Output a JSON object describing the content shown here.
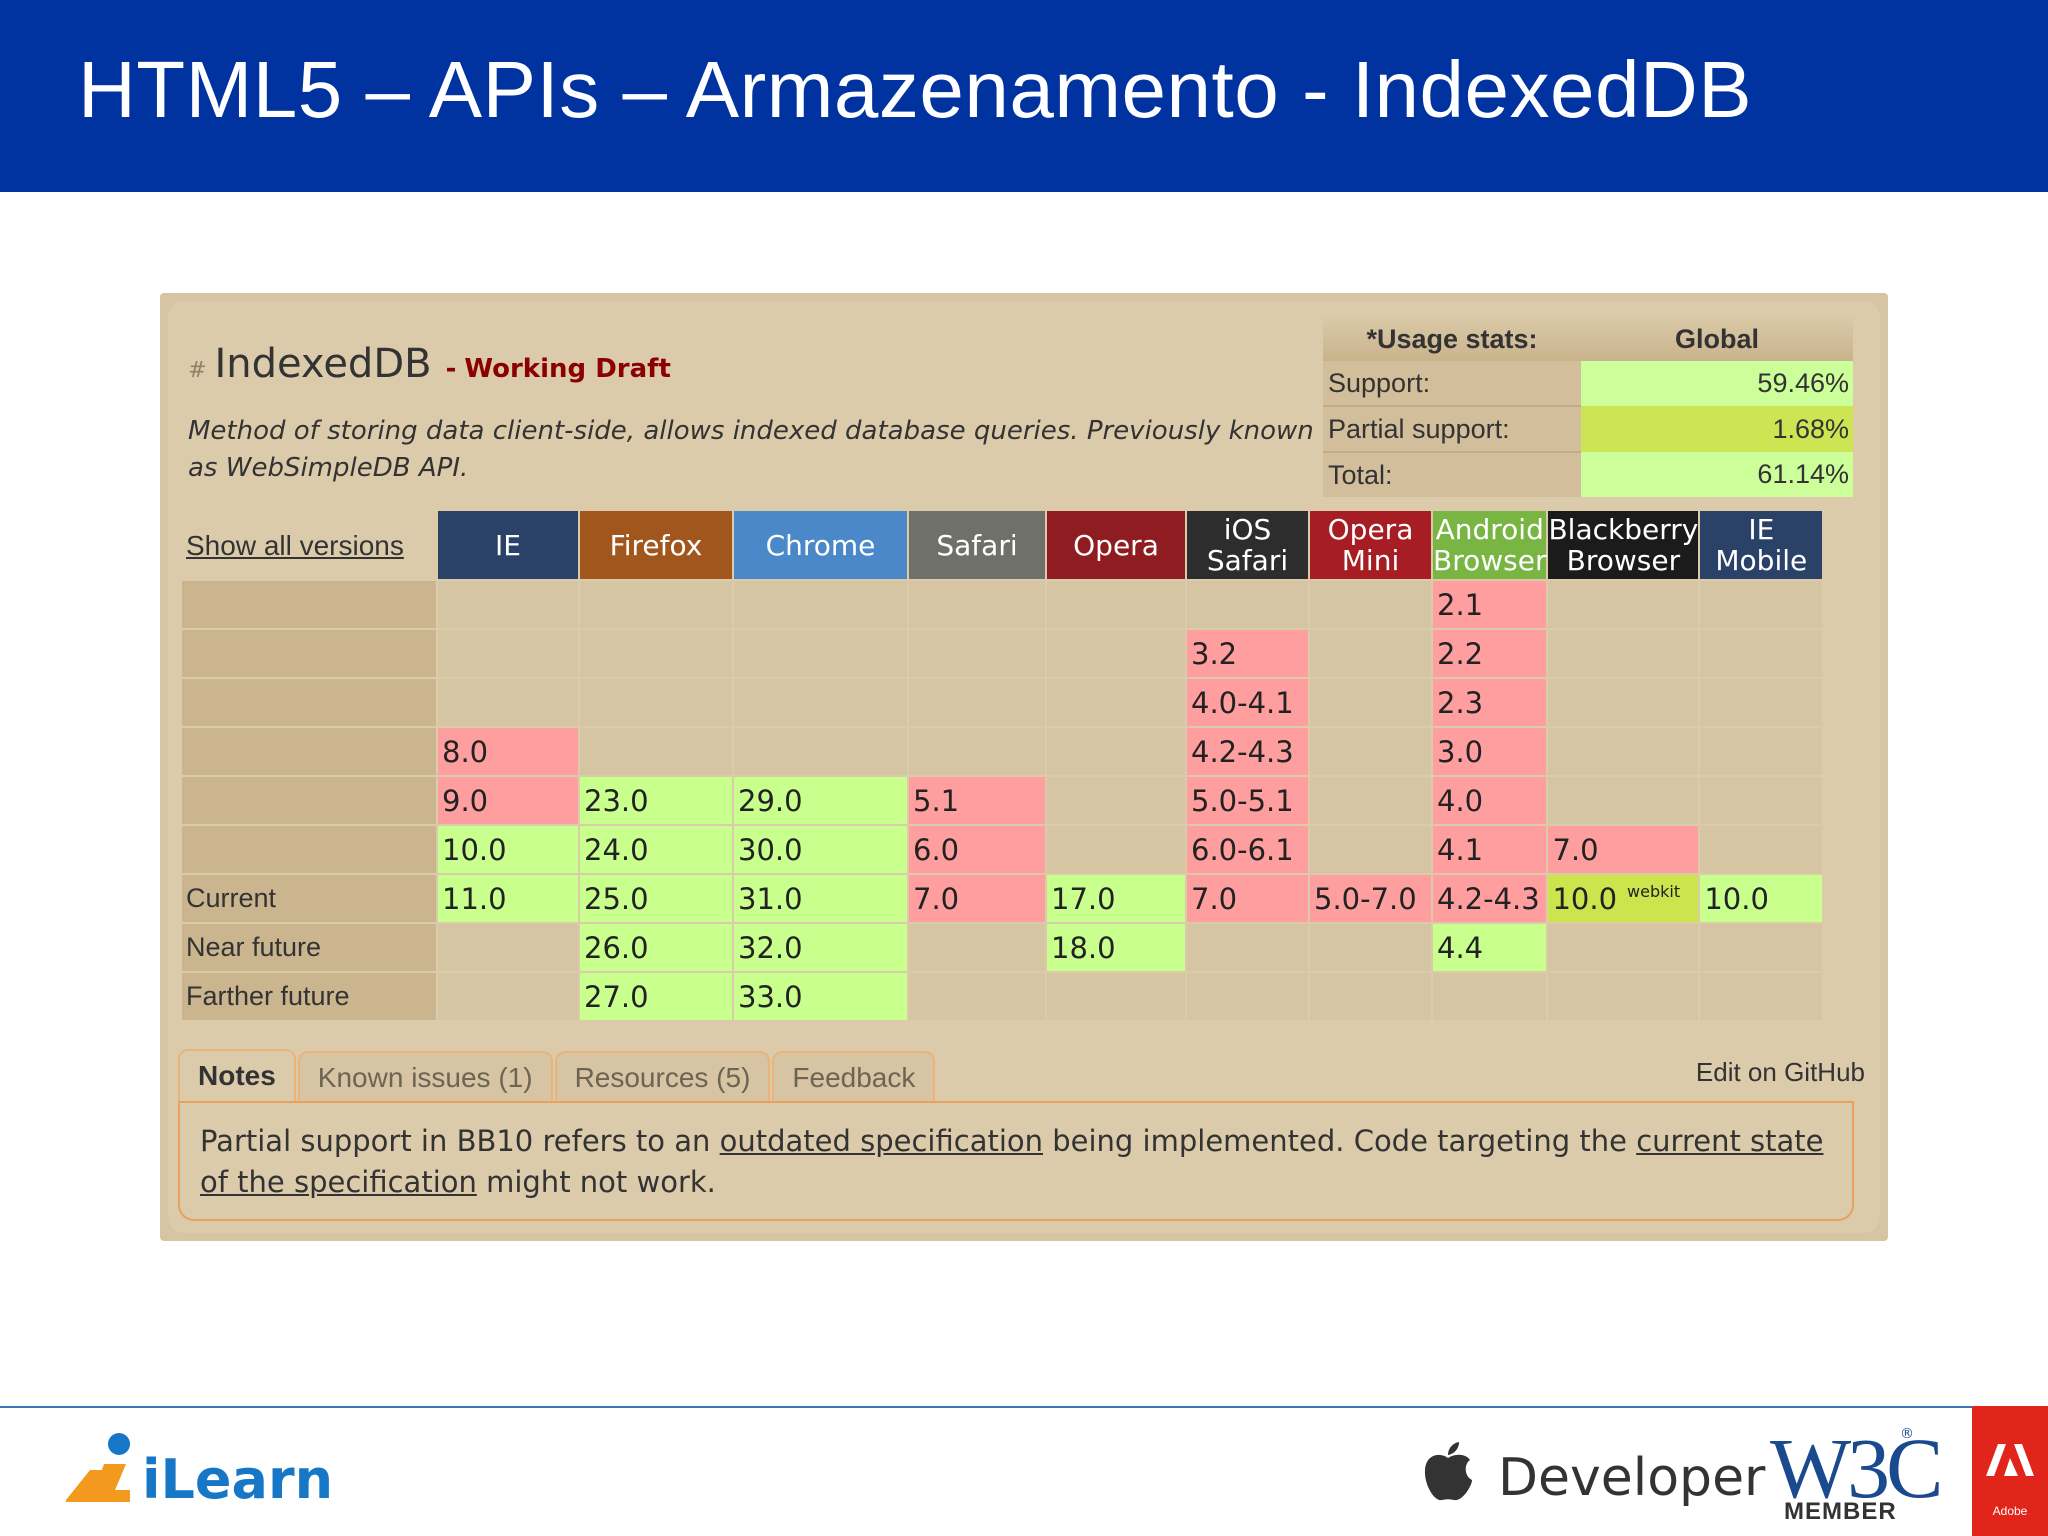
{
  "slide": {
    "title": "HTML5 – APIs – Armazenamento - IndexedDB"
  },
  "feature": {
    "hash": "#",
    "title": "IndexedDB",
    "status_separator": "-",
    "status": "Working Draft",
    "description": "Method of storing data client-side, allows indexed database queries. Previously known as WebSimpleDB API."
  },
  "usage_stats": {
    "header_label": "*Usage stats:",
    "header_region": "Global",
    "rows": [
      {
        "label": "Support:",
        "value": "59.46%",
        "status": "yes"
      },
      {
        "label": "Partial support:",
        "value": "1.68%",
        "status": "partial"
      },
      {
        "label": "Total:",
        "value": "61.14%",
        "status": "yes"
      }
    ],
    "colors": {
      "yes": "#ccff99",
      "partial": "#cde553"
    }
  },
  "grid": {
    "show_all_versions": "Show all versions",
    "browsers": [
      {
        "line1": "IE",
        "line2": "",
        "color": "#2a4268"
      },
      {
        "line1": "Firefox",
        "line2": "",
        "color": "#a1561e"
      },
      {
        "line1": "Chrome",
        "line2": "",
        "color": "#4b88c9"
      },
      {
        "line1": "Safari",
        "line2": "",
        "color": "#70706b"
      },
      {
        "line1": "Opera",
        "line2": "",
        "color": "#8f1c20"
      },
      {
        "line1": "iOS",
        "line2": "Safari",
        "color": "#2d2d2d"
      },
      {
        "line1": "Opera",
        "line2": "Mini",
        "color": "#a61d24"
      },
      {
        "line1": "Android",
        "line2": "Browser",
        "color": "#78b543"
      },
      {
        "line1": "Blackberry",
        "line2": "Browser",
        "color": "#1b1b1b"
      },
      {
        "line1": "IE Mobile",
        "line2": "",
        "color": "#2a4268"
      }
    ],
    "rows": [
      {
        "label": "",
        "cells": [
          [
            "",
            ""
          ],
          [
            "",
            ""
          ],
          [
            "",
            ""
          ],
          [
            "",
            ""
          ],
          [
            "",
            ""
          ],
          [
            "",
            ""
          ],
          [
            "",
            ""
          ],
          [
            "2.1",
            "n"
          ],
          [
            "",
            ""
          ],
          [
            "",
            ""
          ]
        ]
      },
      {
        "label": "",
        "cells": [
          [
            "",
            ""
          ],
          [
            "",
            ""
          ],
          [
            "",
            ""
          ],
          [
            "",
            ""
          ],
          [
            "",
            ""
          ],
          [
            "3.2",
            "n"
          ],
          [
            "",
            ""
          ],
          [
            "2.2",
            "n"
          ],
          [
            "",
            ""
          ],
          [
            "",
            ""
          ]
        ]
      },
      {
        "label": "",
        "cells": [
          [
            "",
            ""
          ],
          [
            "",
            ""
          ],
          [
            "",
            ""
          ],
          [
            "",
            ""
          ],
          [
            "",
            ""
          ],
          [
            "4.0-4.1",
            "n"
          ],
          [
            "",
            ""
          ],
          [
            "2.3",
            "n"
          ],
          [
            "",
            ""
          ],
          [
            "",
            ""
          ]
        ]
      },
      {
        "label": "",
        "cells": [
          [
            "8.0",
            "n"
          ],
          [
            "",
            ""
          ],
          [
            "",
            ""
          ],
          [
            "",
            ""
          ],
          [
            "",
            ""
          ],
          [
            "4.2-4.3",
            "n"
          ],
          [
            "",
            ""
          ],
          [
            "3.0",
            "n"
          ],
          [
            "",
            ""
          ],
          [
            "",
            ""
          ]
        ]
      },
      {
        "label": "",
        "cells": [
          [
            "9.0",
            "n"
          ],
          [
            "23.0",
            "y"
          ],
          [
            "29.0",
            "y"
          ],
          [
            "5.1",
            "n"
          ],
          [
            "",
            ""
          ],
          [
            "5.0-5.1",
            "n"
          ],
          [
            "",
            ""
          ],
          [
            "4.0",
            "n"
          ],
          [
            "",
            ""
          ],
          [
            "",
            ""
          ]
        ]
      },
      {
        "label": "",
        "cells": [
          [
            "10.0",
            "y"
          ],
          [
            "24.0",
            "y"
          ],
          [
            "30.0",
            "y"
          ],
          [
            "6.0",
            "n"
          ],
          [
            "",
            ""
          ],
          [
            "6.0-6.1",
            "n"
          ],
          [
            "",
            ""
          ],
          [
            "4.1",
            "n"
          ],
          [
            "7.0",
            "n"
          ],
          [
            "",
            ""
          ]
        ]
      },
      {
        "label": "Current",
        "cells": [
          [
            "11.0",
            "y"
          ],
          [
            "25.0",
            "y"
          ],
          [
            "31.0",
            "y"
          ],
          [
            "7.0",
            "n"
          ],
          [
            "17.0",
            "y"
          ],
          [
            "7.0",
            "n"
          ],
          [
            "5.0-7.0",
            "n"
          ],
          [
            "4.2-4.3",
            "n"
          ],
          [
            "10.0",
            "a",
            "webkit"
          ],
          [
            "10.0",
            "y"
          ]
        ]
      },
      {
        "label": "Near future",
        "cells": [
          [
            "",
            ""
          ],
          [
            "26.0",
            "y"
          ],
          [
            "32.0",
            "y"
          ],
          [
            "",
            ""
          ],
          [
            "18.0",
            "y"
          ],
          [
            "",
            ""
          ],
          [
            "",
            ""
          ],
          [
            "4.4",
            "y"
          ],
          [
            "",
            ""
          ],
          [
            "",
            ""
          ]
        ]
      },
      {
        "label": "Farther future",
        "cells": [
          [
            "",
            ""
          ],
          [
            "27.0",
            "y"
          ],
          [
            "33.0",
            "y"
          ],
          [
            "",
            ""
          ],
          [
            "",
            ""
          ],
          [
            "",
            ""
          ],
          [
            "",
            ""
          ],
          [
            "",
            ""
          ],
          [
            "",
            ""
          ],
          [
            "",
            ""
          ]
        ]
      }
    ],
    "colors": {
      "no": "#ff9e9e",
      "yes": "#c9ff8c",
      "partial": "#cce54c"
    }
  },
  "tabs": [
    {
      "label": "Notes",
      "active": true
    },
    {
      "label": "Known issues (1)",
      "active": false
    },
    {
      "label": "Resources (5)",
      "active": false
    },
    {
      "label": "Feedback",
      "active": false
    }
  ],
  "edit_link": "Edit on GitHub",
  "notes": {
    "part1": "Partial support in BB10 refers to an ",
    "link1": "outdated specification",
    "part2": " being implemented. Code targeting the ",
    "link2": "current state of the specification",
    "part3": " might not work."
  },
  "footer": {
    "ilearn_text": "iLearn",
    "developer_text": "Developer",
    "w3c_text": "W3C",
    "w3c_member": "MEMBER",
    "w3c_reg": "®",
    "adobe_label": "Adobe",
    "apple_icon": "apple-icon"
  }
}
